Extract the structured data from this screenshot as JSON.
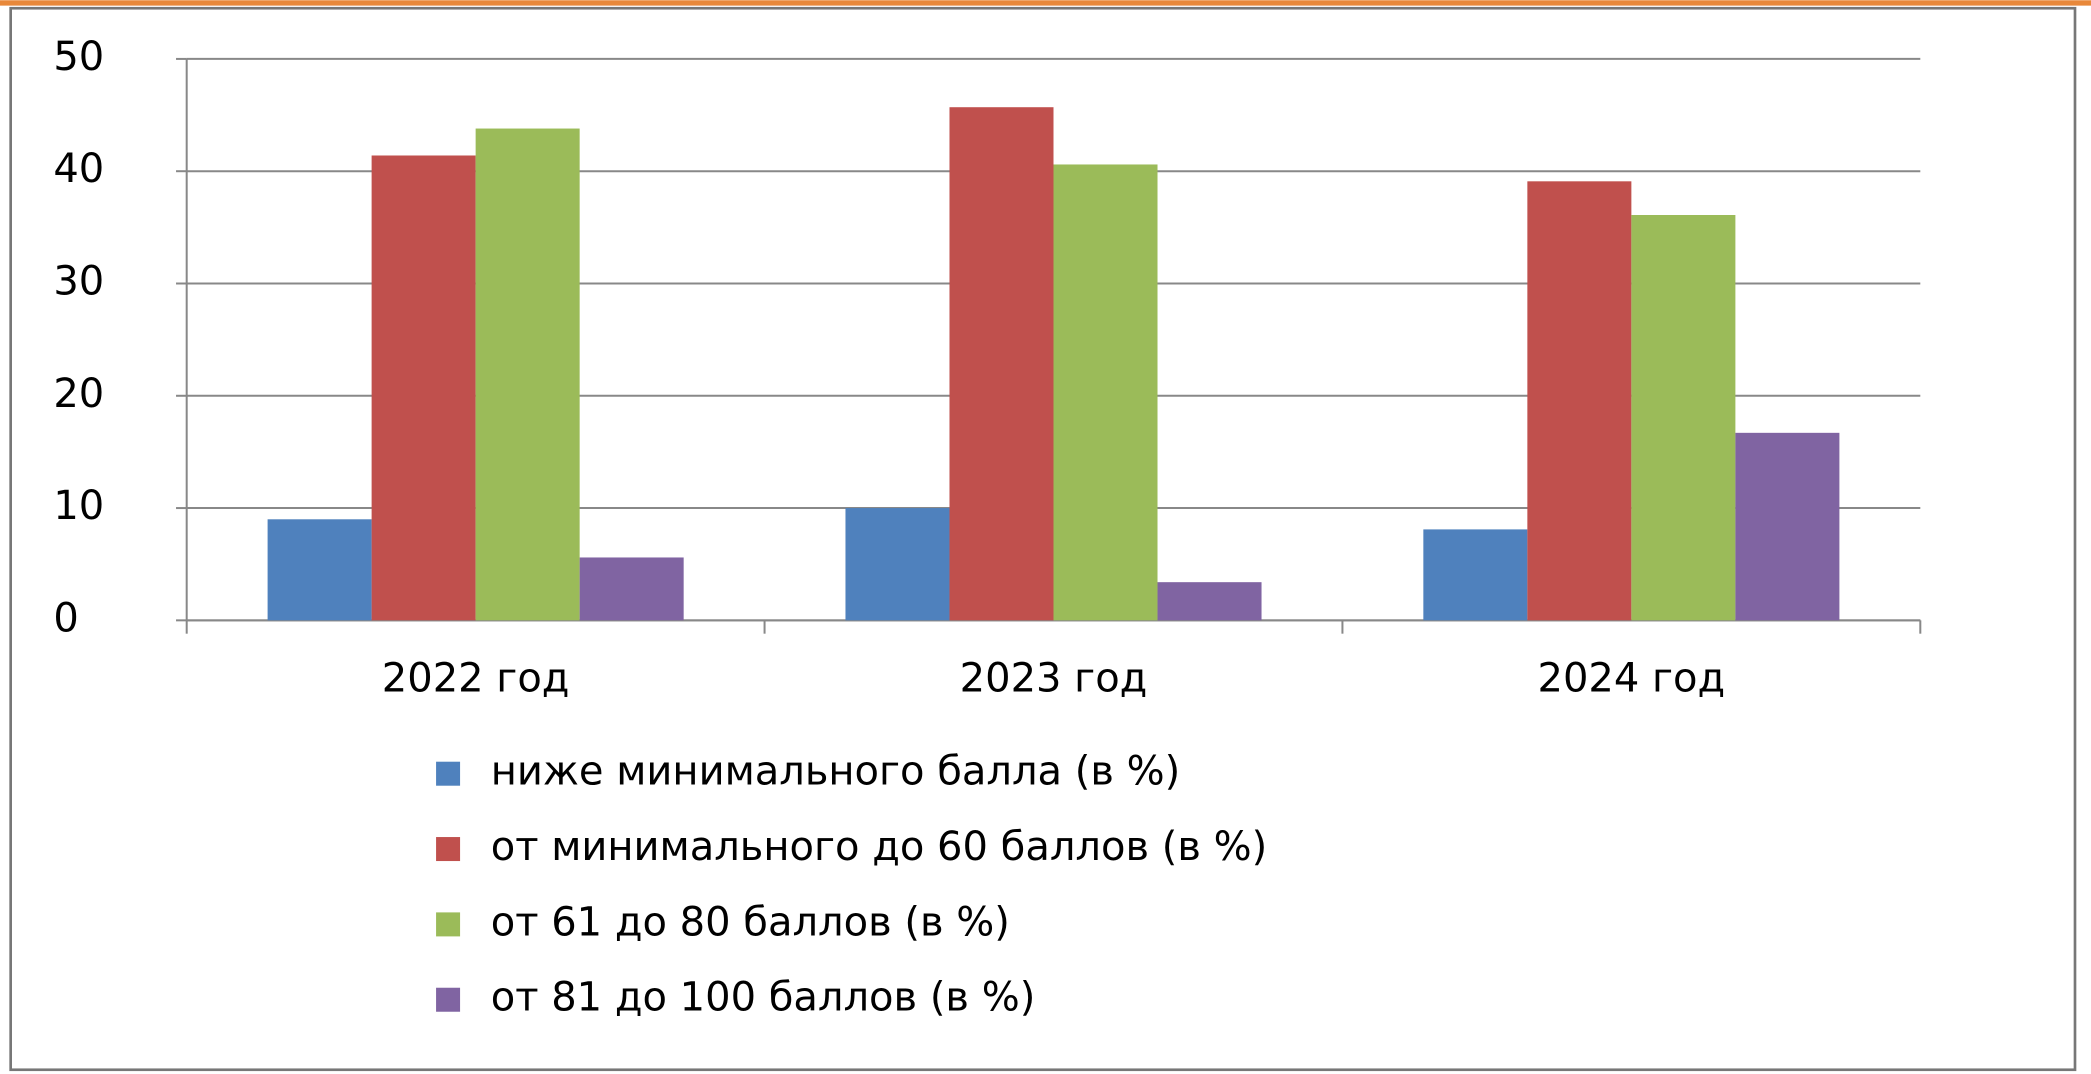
{
  "chart_data": {
    "type": "bar",
    "categories": [
      "2022 год",
      "2023 год",
      "2024 год"
    ],
    "series": [
      {
        "name": "ниже минимального балла (в %)",
        "color": "#4f81bd",
        "values": [
          9.0,
          10.0,
          8.1
        ]
      },
      {
        "name": "от минимального до 60 баллов (в %)",
        "color": "#c0504d",
        "values": [
          41.4,
          45.7,
          39.1
        ]
      },
      {
        "name": "от 61 до 80 баллов (в %)",
        "color": "#9bbb59",
        "values": [
          43.8,
          40.6,
          36.1
        ]
      },
      {
        "name": "от 81 до 100 баллов (в %)",
        "color": "#8064a2",
        "values": [
          5.6,
          3.4,
          16.7
        ]
      }
    ],
    "ylim": [
      0,
      50
    ],
    "yticks": [
      0,
      10,
      20,
      30,
      40,
      50
    ],
    "grid": true,
    "legend": "bottom"
  }
}
